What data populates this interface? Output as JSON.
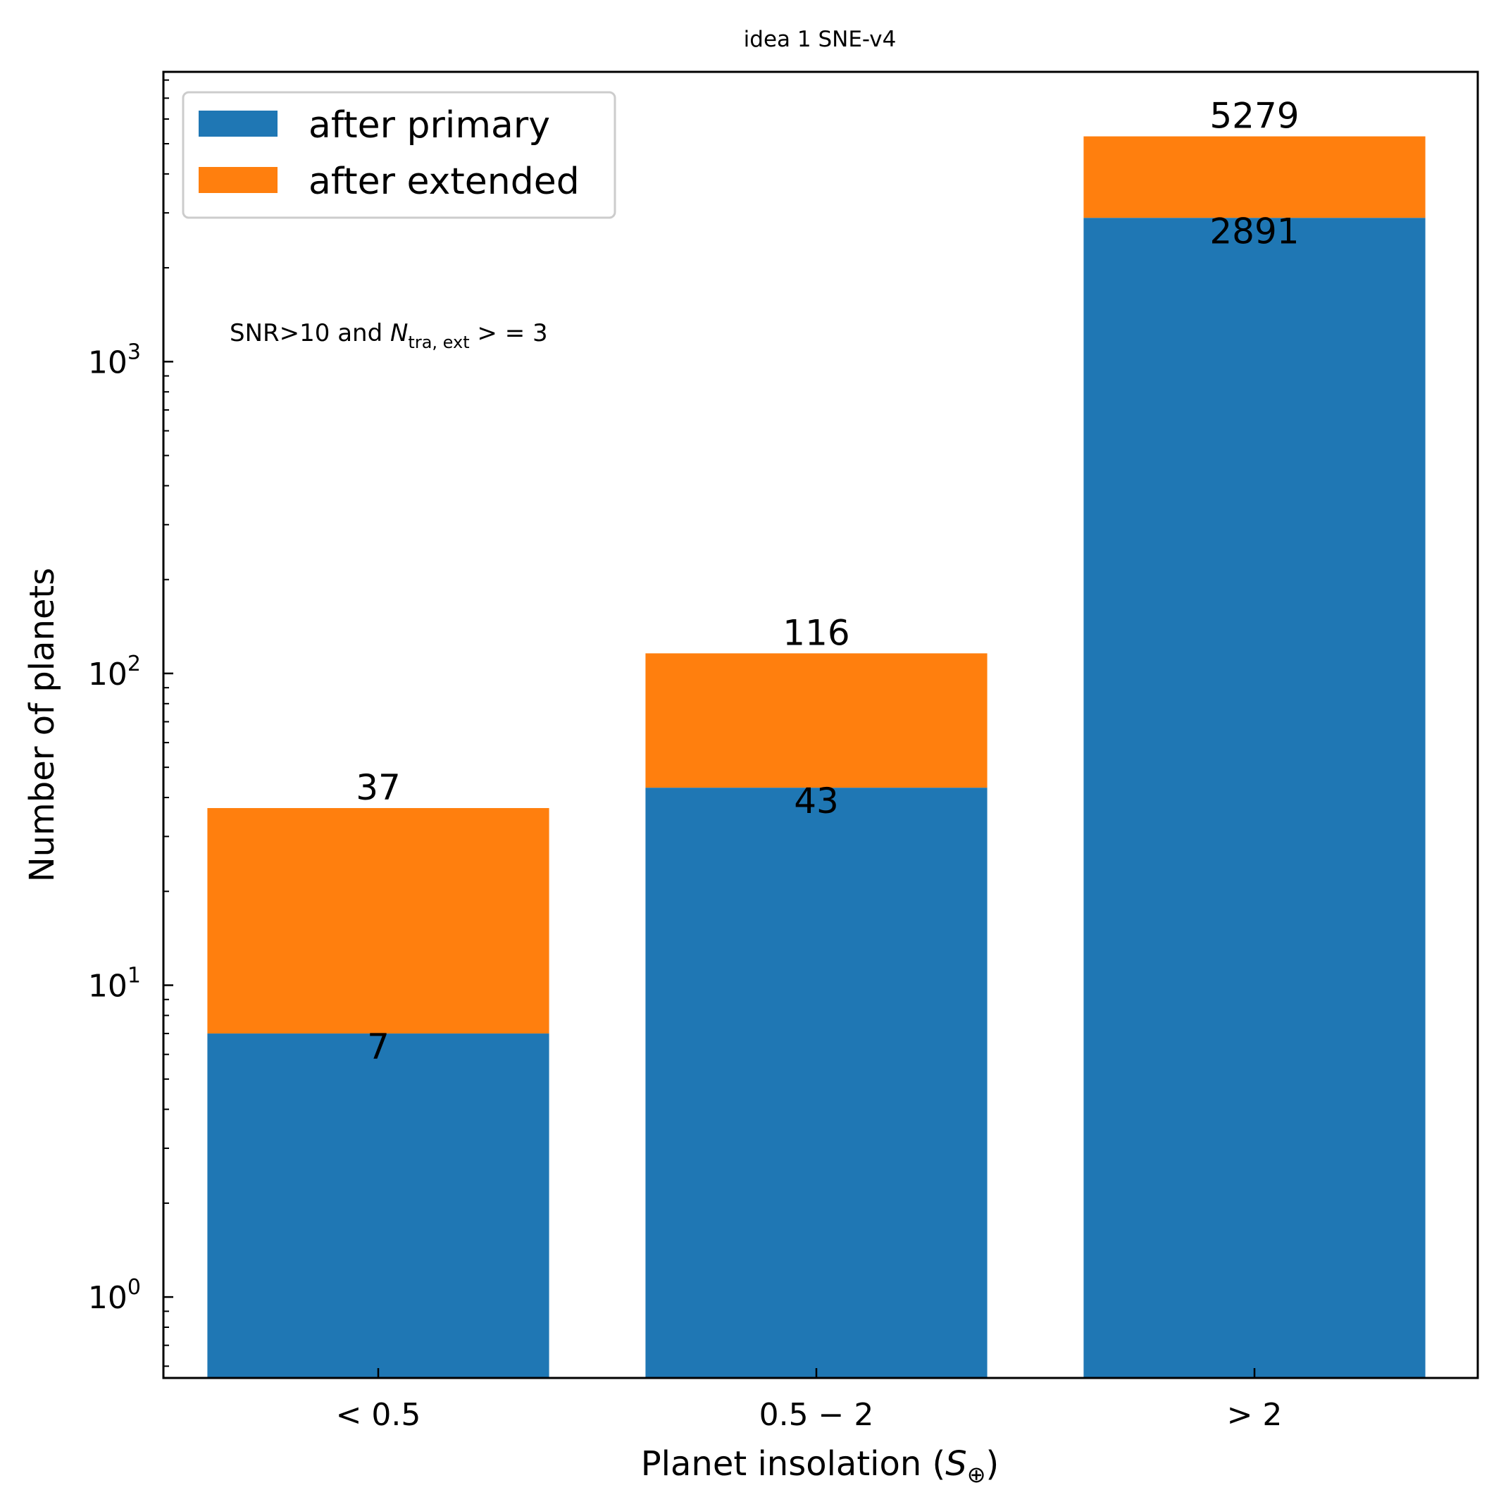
{
  "chart_data": {
    "type": "bar",
    "stacked": true,
    "title": "idea 1 SNE-v4",
    "xlabel": "Planet insolation",
    "xlabel_symbol": "S",
    "xlabel_subscript": "⊕",
    "ylabel": "Number of planets",
    "yscale": "log",
    "ylim": [
      0.55,
      8500
    ],
    "categories": [
      "< 0.5",
      "0.5 − 2",
      "> 2"
    ],
    "series": [
      {
        "name": "after primary",
        "color": "#1f77b4",
        "values": [
          7,
          43,
          2891
        ],
        "labels": [
          "7",
          "43",
          "2891"
        ]
      },
      {
        "name": "after extended",
        "color": "#ff7f0e",
        "values": [
          37,
          116,
          5279
        ],
        "labels": [
          "37",
          "116",
          "5279"
        ]
      }
    ],
    "yticks": [
      {
        "value": 1,
        "base": "10",
        "exp": "0"
      },
      {
        "value": 10,
        "base": "10",
        "exp": "1"
      },
      {
        "value": 100,
        "base": "10",
        "exp": "2"
      },
      {
        "value": 1000,
        "base": "10",
        "exp": "3"
      }
    ],
    "annotation": {
      "prefix": "SNR>10 and ",
      "symbol": "N",
      "subscript": "tra, ext",
      "suffix": " > = 3"
    },
    "legend": {
      "position": "top-left"
    },
    "grid": false
  }
}
